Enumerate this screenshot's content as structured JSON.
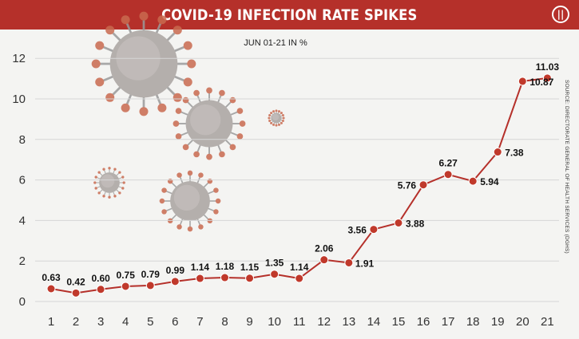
{
  "header": {
    "title": "COVID-19 INFECTION RATE SPIKES",
    "logo_letter": "॥"
  },
  "subtitle": "JUN 01-21 IN %",
  "source": "SOURCE: DIRECTORATE GENERAL OF HEALTH SERVICES (DGHS)",
  "colors": {
    "accent": "#b5302a",
    "line": "#b5302a",
    "point": "#c0392b",
    "virus": "#c96a4f"
  },
  "chart_data": {
    "type": "line",
    "x": [
      1,
      2,
      3,
      4,
      5,
      6,
      7,
      8,
      9,
      10,
      11,
      12,
      13,
      14,
      15,
      16,
      17,
      18,
      19,
      20,
      21
    ],
    "values": [
      0.63,
      0.42,
      0.6,
      0.75,
      0.79,
      0.99,
      1.14,
      1.18,
      1.15,
      1.35,
      1.14,
      2.06,
      1.91,
      3.56,
      3.88,
      5.76,
      6.27,
      5.94,
      7.38,
      10.87,
      11.03
    ],
    "labels": [
      "0.63",
      "0.42",
      "0.60",
      "0.75",
      "0.79",
      "0.99",
      "1.14",
      "1.18",
      "1.15",
      "1.35",
      "1.14",
      "2.06",
      "1.91",
      "3.56",
      "3.88",
      "5.76",
      "6.27",
      "5.94",
      "7.38",
      "10.87",
      "11.03"
    ],
    "yticks": [
      0,
      2,
      4,
      6,
      8,
      10,
      12
    ],
    "ylim": [
      0,
      12.4
    ],
    "grid": true,
    "title": "COVID-19 INFECTION RATE SPIKES",
    "subtitle": "JUN 01-21 IN %"
  }
}
